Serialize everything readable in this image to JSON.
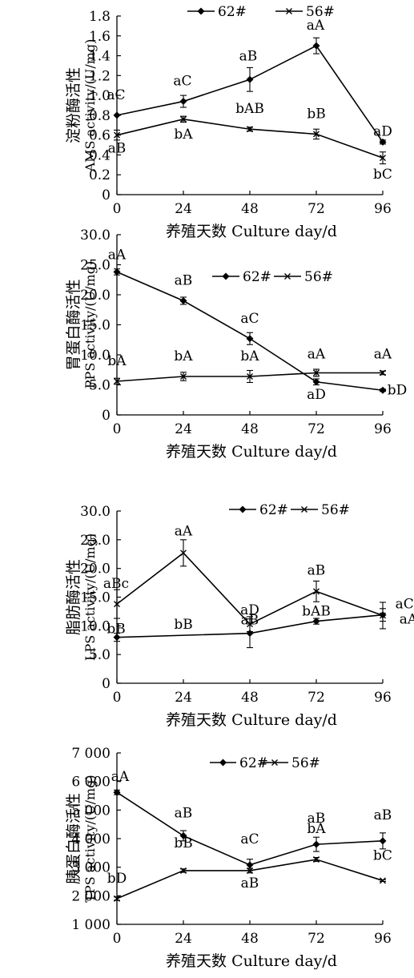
{
  "chart_data": [
    {
      "type": "line",
      "ylabel_cn": "淀粉酶活性",
      "ylabel_en": "AMS activity/(U/mg)",
      "xlabel": "养殖天数 Culture day/d",
      "x": [
        0,
        24,
        48,
        72,
        96
      ],
      "ylim": [
        0,
        1.8
      ],
      "yticks": [
        0,
        0.2,
        0.4,
        0.6,
        0.8,
        1.0,
        1.2,
        1.4,
        1.6,
        1.8
      ],
      "ytick_labels": [
        "0",
        "0.2",
        "0.4",
        "0.6",
        "0.8",
        "1.0",
        "1.2",
        "1.4",
        "1.6",
        "1.8"
      ],
      "legend": "top",
      "grid": false,
      "series": [
        {
          "name": "62#",
          "marker": "diamond",
          "values": [
            0.8,
            0.94,
            1.16,
            1.5,
            0.53
          ],
          "errors": [
            0.0,
            0.06,
            0.12,
            0.08,
            0.02
          ],
          "labels": [
            "aC",
            "aC",
            "aB",
            "aA",
            "aD"
          ]
        },
        {
          "name": "56#",
          "marker": "x",
          "values": [
            0.6,
            0.76,
            0.66,
            0.61,
            0.37
          ],
          "errors": [
            0.05,
            0.03,
            0.02,
            0.05,
            0.06
          ],
          "labels": [
            "aB",
            "bA",
            "bAB",
            "bB",
            "bC"
          ]
        }
      ]
    },
    {
      "type": "line",
      "ylabel_cn": "胃蛋白酶活性",
      "ylabel_en": "PPS activity/(U/mg)",
      "xlabel": "养殖天数 Culture day/d",
      "x": [
        0,
        24,
        48,
        72,
        96
      ],
      "ylim": [
        0,
        30
      ],
      "yticks": [
        0,
        5,
        10,
        15,
        20,
        25,
        30
      ],
      "ytick_labels": [
        "0",
        "5.0",
        "10.0",
        "15.0",
        "20.0",
        "25.0",
        "30.0"
      ],
      "legend": "top-right",
      "grid": false,
      "series": [
        {
          "name": "62#",
          "marker": "diamond",
          "values": [
            23.8,
            19.0,
            12.7,
            5.5,
            4.1
          ],
          "errors": [
            0.5,
            0.6,
            1.0,
            0.5,
            0.2
          ],
          "labels": [
            "aA",
            "aB",
            "aC",
            "aD",
            "bD"
          ]
        },
        {
          "name": "56#",
          "marker": "x",
          "values": [
            5.6,
            6.4,
            6.4,
            7.0,
            7.0
          ],
          "errors": [
            0.5,
            0.7,
            1.0,
            0.6,
            0.3
          ],
          "labels": [
            "bA",
            "bA",
            "bA",
            "aA",
            "aA"
          ]
        }
      ]
    },
    {
      "type": "line",
      "ylabel_cn": "脂肪酶活性",
      "ylabel_en": "LPS activity/(U/mg)",
      "xlabel": "养殖天数 Culture day/d",
      "x": [
        0,
        24,
        48,
        72,
        96
      ],
      "ylim": [
        0,
        30
      ],
      "yticks": [
        0,
        5,
        10,
        15,
        20,
        25,
        30
      ],
      "ytick_labels": [
        "0",
        "5.0",
        "10.0",
        "15.0",
        "20.0",
        "25.0",
        "30.0"
      ],
      "legend": "top-right",
      "grid": false,
      "series": [
        {
          "name": "62#",
          "marker": "diamond",
          "values": [
            8.0,
            null,
            8.7,
            10.8,
            11.9
          ],
          "errors": [
            0.7,
            0,
            2.5,
            0.5,
            1.1
          ],
          "labels": [
            "bB",
            "bB",
            "aB",
            "bAB",
            "aA"
          ]
        },
        {
          "name": "56#",
          "marker": "x",
          "values": [
            13.8,
            22.7,
            10.3,
            16.0,
            11.8
          ],
          "errors": [
            2.5,
            2.3,
            1.3,
            1.8,
            2.3
          ],
          "labels": [
            "aBc",
            "aA",
            "aD",
            "aB",
            "aCD"
          ]
        }
      ]
    },
    {
      "type": "line",
      "ylabel_cn": "胰蛋白酶活性",
      "ylabel_en": "TPS activity/(U/mg)",
      "xlabel": "养殖天数 Culture day/d",
      "x": [
        0,
        24,
        48,
        72,
        96
      ],
      "ylim": [
        1000,
        7000
      ],
      "yticks": [
        1000,
        2000,
        3000,
        4000,
        5000,
        6000,
        7000
      ],
      "ytick_labels": [
        "1 000",
        "2 000",
        "3 000",
        "4 000",
        "5 000",
        "6 000",
        "7 000"
      ],
      "legend": "top-right",
      "grid": false,
      "series": [
        {
          "name": "62#",
          "marker": "diamond",
          "values": [
            5620,
            4100,
            3080,
            3800,
            3920
          ],
          "errors": [
            80,
            180,
            200,
            250,
            280
          ],
          "labels": [
            "aA",
            "aB",
            "aC",
            "aB",
            "aB"
          ]
        },
        {
          "name": "56#",
          "marker": "x",
          "values": [
            1900,
            2880,
            2880,
            3270,
            2530
          ],
          "errors": [
            60,
            60,
            80,
            70,
            30
          ],
          "labels": [
            "bD",
            "bB",
            "aB",
            "bA",
            "bC"
          ]
        }
      ]
    }
  ]
}
